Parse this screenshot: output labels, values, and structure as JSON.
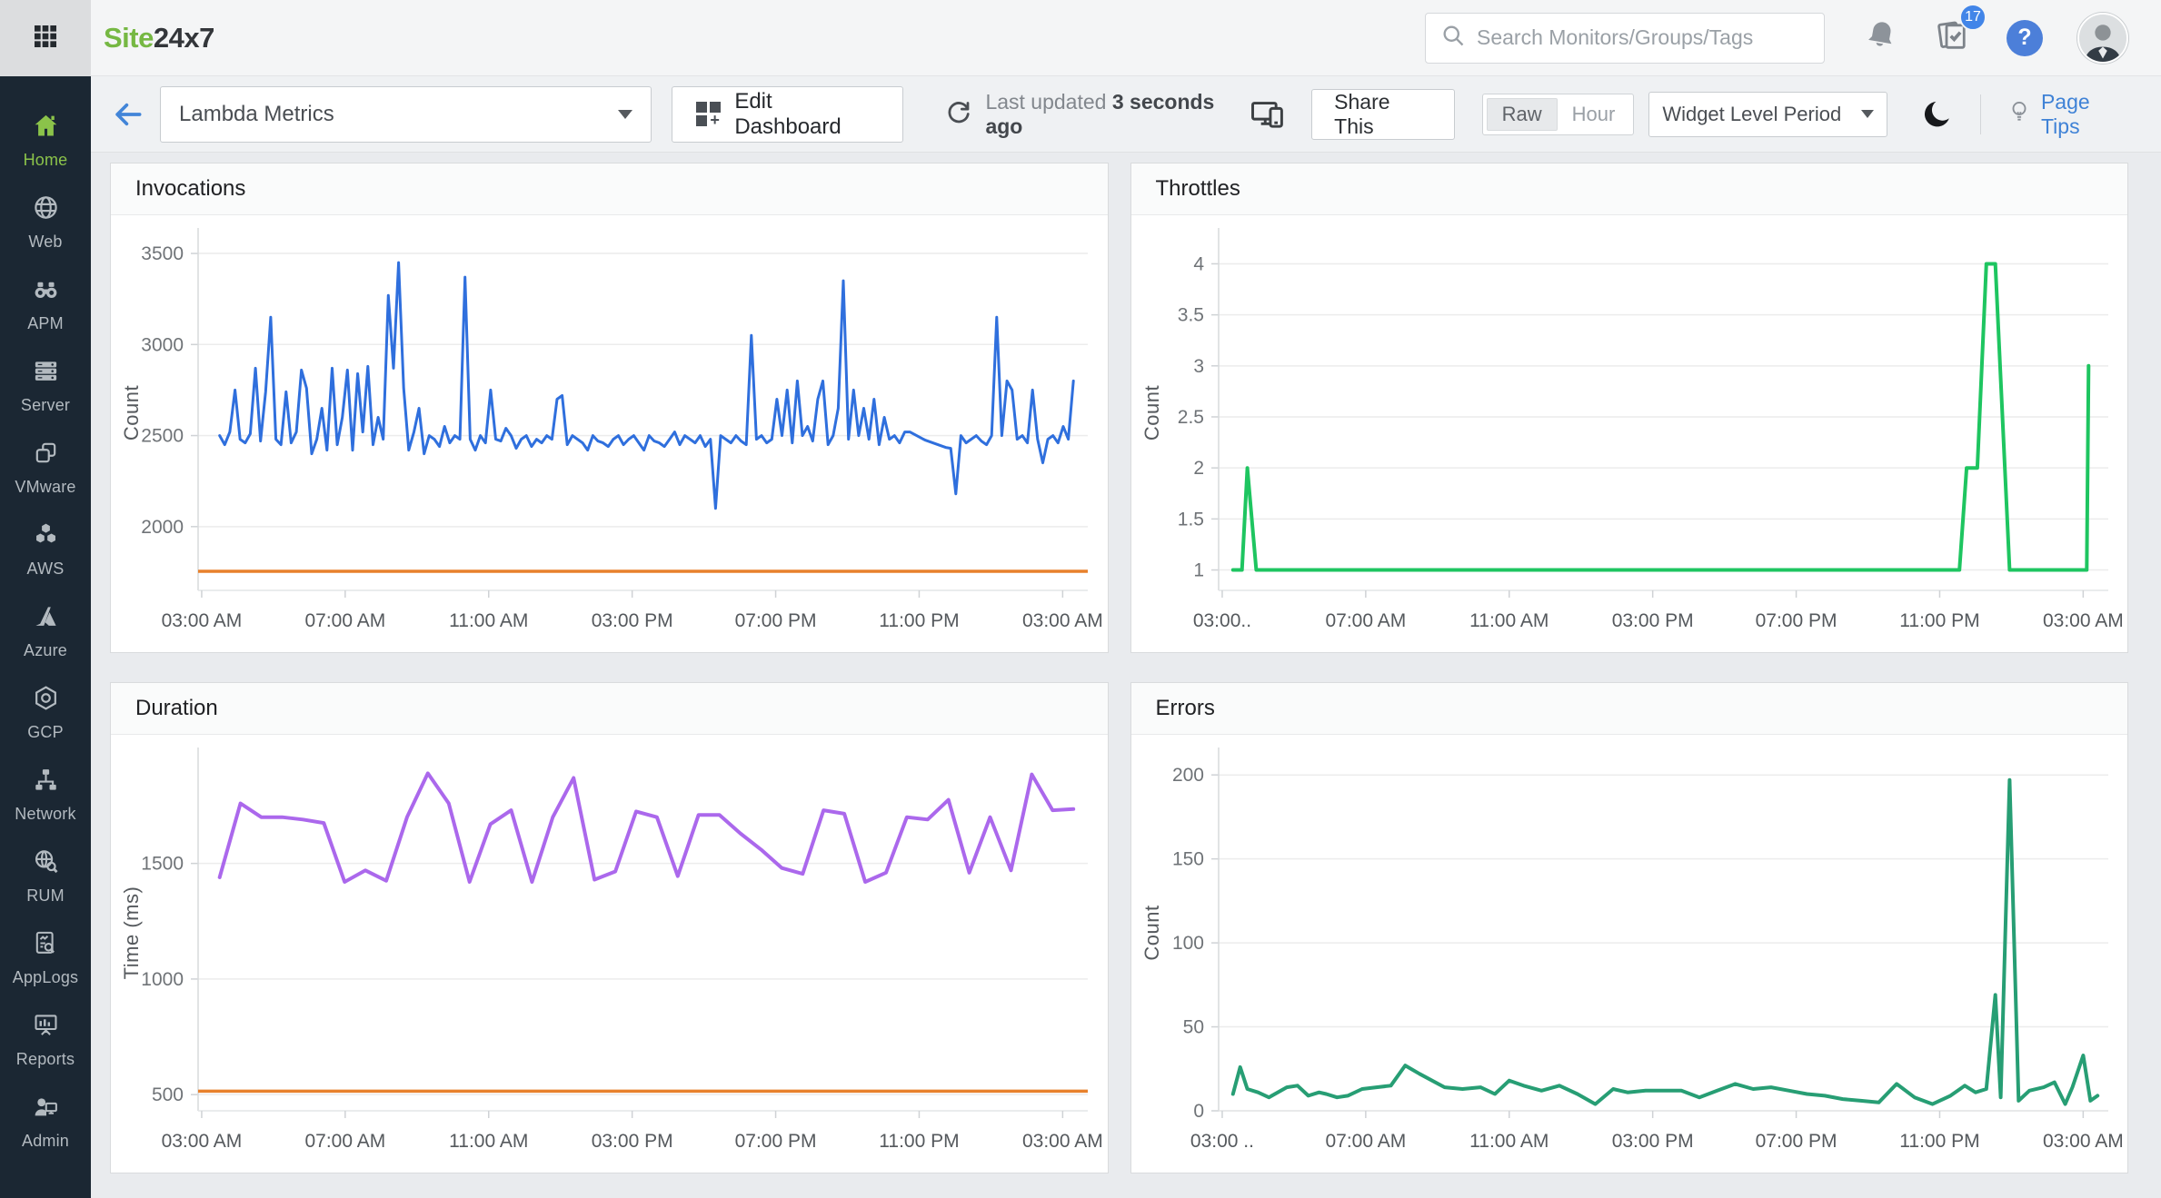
{
  "header": {
    "logo_green": "Site",
    "logo_dark": "24x7",
    "search_placeholder": "Search Monitors/Groups/Tags",
    "task_badge": "17",
    "help_label": "?"
  },
  "toolbar": {
    "dashboard_name": "Lambda Metrics",
    "edit_dashboard": "Edit Dashboard",
    "last_updated_prefix": "Last updated",
    "last_updated_value": "3 seconds ago",
    "share_this": "Share This",
    "period_raw": "Raw",
    "period_hour": "Hour",
    "widget_level_period": "Widget Level Period",
    "page_tips": "Page Tips"
  },
  "sidebar": {
    "items": [
      {
        "label": "Home",
        "active": true
      },
      {
        "label": "Web",
        "active": false
      },
      {
        "label": "APM",
        "active": false
      },
      {
        "label": "Server",
        "active": false
      },
      {
        "label": "VMware",
        "active": false
      },
      {
        "label": "AWS",
        "active": false
      },
      {
        "label": "Azure",
        "active": false
      },
      {
        "label": "GCP",
        "active": false
      },
      {
        "label": "Network",
        "active": false
      },
      {
        "label": "RUM",
        "active": false
      },
      {
        "label": "AppLogs",
        "active": false
      },
      {
        "label": "Reports",
        "active": false
      },
      {
        "label": "Admin",
        "active": false
      }
    ]
  },
  "colors": {
    "brand_green": "#76b843",
    "link_blue": "#3f82d6",
    "sidebar_active": "#8bc34a",
    "threshold_orange": "#e8812c"
  },
  "chart_data": [
    {
      "id": "invocations",
      "title": "Invocations",
      "type": "line",
      "ylabel": "Count",
      "ylim": [
        1650,
        3600
      ],
      "yticks": [
        2000,
        2500,
        3000,
        3500
      ],
      "xlim": [
        2.9,
        27.7
      ],
      "xticks": [
        {
          "v": 3,
          "label": "03:00 AM"
        },
        {
          "v": 7,
          "label": "07:00 AM"
        },
        {
          "v": 11,
          "label": "11:00 AM"
        },
        {
          "v": 15,
          "label": "03:00 PM"
        },
        {
          "v": 19,
          "label": "07:00 PM"
        },
        {
          "v": 23,
          "label": "11:00 PM"
        },
        {
          "v": 27,
          "label": "03:00 AM"
        }
      ],
      "threshold": {
        "value": 1755,
        "color": "#e8812c"
      },
      "series": [
        {
          "name": "Invocations",
          "color": "#2f6fdd",
          "width": 3,
          "x_start": 3.5,
          "x_end": 27.3,
          "values": [
            2500,
            2450,
            2520,
            2750,
            2480,
            2460,
            2510,
            2870,
            2470,
            2740,
            3150,
            2480,
            2450,
            2740,
            2460,
            2520,
            2860,
            2760,
            2400,
            2480,
            2650,
            2420,
            2870,
            2450,
            2600,
            2860,
            2420,
            2840,
            2520,
            2880,
            2450,
            2600,
            2480,
            3270,
            2870,
            3450,
            2760,
            2420,
            2520,
            2650,
            2400,
            2500,
            2480,
            2440,
            2550,
            2460,
            2500,
            2480,
            3370,
            2480,
            2420,
            2500,
            2460,
            2750,
            2480,
            2470,
            2540,
            2500,
            2430,
            2480,
            2500,
            2440,
            2480,
            2460,
            2500,
            2480,
            2700,
            2720,
            2450,
            2500,
            2480,
            2460,
            2420,
            2500,
            2470,
            2460,
            2440,
            2480,
            2500,
            2450,
            2480,
            2500,
            2460,
            2420,
            2500,
            2470,
            2460,
            2440,
            2480,
            2520,
            2450,
            2500,
            2480,
            2460,
            2500,
            2440,
            2480,
            2100,
            2500,
            2480,
            2460,
            2500,
            2470,
            2450,
            3050,
            2480,
            2500,
            2460,
            2480,
            2700,
            2500,
            2750,
            2460,
            2800,
            2500,
            2550,
            2470,
            2700,
            2800,
            2450,
            2500,
            2650,
            3350,
            2480,
            2750,
            2500,
            2650,
            2480,
            2700,
            2450,
            2600,
            2480,
            2500,
            2460,
            2520,
            2520,
            2505,
            2490,
            2475,
            2465,
            2455,
            2445,
            2435,
            2430,
            2180,
            2500,
            2460,
            2480,
            2500,
            2470,
            2450,
            2500,
            3150,
            2500,
            2800,
            2750,
            2480,
            2500,
            2460,
            2750,
            2480,
            2350,
            2480,
            2500,
            2460,
            2550,
            2480,
            2800
          ]
        }
      ]
    },
    {
      "id": "throttles",
      "title": "Throttles",
      "type": "line",
      "ylabel": "Count",
      "ylim": [
        0.8,
        4.28
      ],
      "yticks": [
        1,
        1.5,
        2,
        2.5,
        3,
        3.5,
        4
      ],
      "xlim": [
        2.9,
        27.7
      ],
      "xticks": [
        {
          "v": 3,
          "label": "03:00.."
        },
        {
          "v": 7,
          "label": "07:00 AM"
        },
        {
          "v": 11,
          "label": "11:00 AM"
        },
        {
          "v": 15,
          "label": "03:00 PM"
        },
        {
          "v": 19,
          "label": "07:00 PM"
        },
        {
          "v": 23,
          "label": "11:00 PM"
        },
        {
          "v": 27,
          "label": "03:00 AM"
        }
      ],
      "series": [
        {
          "name": "Throttles",
          "color": "#1ec560",
          "width": 4,
          "points": [
            [
              3.3,
              1
            ],
            [
              3.55,
              1
            ],
            [
              3.7,
              2
            ],
            [
              3.95,
              1
            ],
            [
              4.3,
              1
            ],
            [
              6,
              1
            ],
            [
              8,
              1
            ],
            [
              10,
              1
            ],
            [
              12,
              1
            ],
            [
              14,
              1
            ],
            [
              16,
              1
            ],
            [
              18,
              1
            ],
            [
              20,
              1
            ],
            [
              22,
              1
            ],
            [
              23.3,
              1
            ],
            [
              23.55,
              1
            ],
            [
              23.75,
              2
            ],
            [
              24.05,
              2
            ],
            [
              24.3,
              4
            ],
            [
              24.55,
              4
            ],
            [
              24.95,
              1
            ],
            [
              25.5,
              1
            ],
            [
              26.5,
              1
            ],
            [
              27.1,
              1
            ],
            [
              27.15,
              3
            ]
          ]
        }
      ]
    },
    {
      "id": "duration",
      "title": "Duration",
      "type": "line",
      "ylabel": "Time (ms)",
      "ylim": [
        430,
        1970
      ],
      "yticks": [
        500,
        1000,
        1500
      ],
      "xlim": [
        2.9,
        27.7
      ],
      "xticks": [
        {
          "v": 3,
          "label": "03:00 AM"
        },
        {
          "v": 7,
          "label": "07:00 AM"
        },
        {
          "v": 11,
          "label": "11:00 AM"
        },
        {
          "v": 15,
          "label": "03:00 PM"
        },
        {
          "v": 19,
          "label": "07:00 PM"
        },
        {
          "v": 23,
          "label": "11:00 PM"
        },
        {
          "v": 27,
          "label": "03:00 AM"
        }
      ],
      "threshold": {
        "value": 515,
        "color": "#e8812c"
      },
      "series": [
        {
          "name": "Duration",
          "color": "#ab68ec",
          "width": 4,
          "x_start": 3.5,
          "x_end": 27.3,
          "values": [
            1440,
            1760,
            1700,
            1700,
            1690,
            1675,
            1420,
            1470,
            1425,
            1700,
            1890,
            1760,
            1420,
            1670,
            1730,
            1420,
            1700,
            1870,
            1430,
            1465,
            1725,
            1700,
            1445,
            1710,
            1710,
            1630,
            1560,
            1480,
            1455,
            1730,
            1715,
            1420,
            1460,
            1700,
            1690,
            1775,
            1460,
            1700,
            1470,
            1885,
            1730,
            1735
          ]
        }
      ]
    },
    {
      "id": "errors",
      "title": "Errors",
      "type": "line",
      "ylabel": "Count",
      "ylim": [
        0,
        212
      ],
      "yticks": [
        0,
        50,
        100,
        150,
        200
      ],
      "xlim": [
        2.9,
        27.7
      ],
      "xticks": [
        {
          "v": 3,
          "label": "03:00 .."
        },
        {
          "v": 7,
          "label": "07:00 AM"
        },
        {
          "v": 11,
          "label": "11:00 AM"
        },
        {
          "v": 15,
          "label": "03:00 PM"
        },
        {
          "v": 19,
          "label": "07:00 PM"
        },
        {
          "v": 23,
          "label": "11:00 PM"
        },
        {
          "v": 27,
          "label": "03:00 AM"
        }
      ],
      "series": [
        {
          "name": "Errors",
          "color": "#279e74",
          "width": 4,
          "points": [
            [
              3.3,
              10
            ],
            [
              3.5,
              26
            ],
            [
              3.7,
              13
            ],
            [
              4.0,
              11
            ],
            [
              4.3,
              8
            ],
            [
              4.8,
              14
            ],
            [
              5.1,
              15
            ],
            [
              5.4,
              9
            ],
            [
              5.7,
              11
            ],
            [
              5.9,
              10
            ],
            [
              6.2,
              8
            ],
            [
              6.5,
              9
            ],
            [
              6.9,
              13
            ],
            [
              7.3,
              14
            ],
            [
              7.7,
              15
            ],
            [
              8.1,
              27
            ],
            [
              8.5,
              22
            ],
            [
              9.2,
              14
            ],
            [
              9.7,
              13
            ],
            [
              10.2,
              14
            ],
            [
              10.6,
              10
            ],
            [
              11.0,
              18
            ],
            [
              11.4,
              15
            ],
            [
              11.9,
              12
            ],
            [
              12.4,
              15
            ],
            [
              12.9,
              10
            ],
            [
              13.4,
              4
            ],
            [
              13.9,
              13
            ],
            [
              14.3,
              11
            ],
            [
              14.8,
              12
            ],
            [
              15.3,
              12
            ],
            [
              15.8,
              12
            ],
            [
              16.3,
              8
            ],
            [
              16.8,
              12
            ],
            [
              17.3,
              16
            ],
            [
              17.8,
              13
            ],
            [
              18.3,
              14
            ],
            [
              18.8,
              12
            ],
            [
              19.3,
              10
            ],
            [
              19.8,
              9
            ],
            [
              20.3,
              7
            ],
            [
              20.8,
              6
            ],
            [
              21.3,
              5
            ],
            [
              21.8,
              16
            ],
            [
              22.3,
              8
            ],
            [
              22.8,
              4
            ],
            [
              23.3,
              9
            ],
            [
              23.7,
              15
            ],
            [
              24.0,
              11
            ],
            [
              24.3,
              13
            ],
            [
              24.55,
              69
            ],
            [
              24.7,
              8
            ],
            [
              24.95,
              197
            ],
            [
              25.2,
              6
            ],
            [
              25.5,
              12
            ],
            [
              25.9,
              14
            ],
            [
              26.2,
              17
            ],
            [
              26.5,
              4
            ],
            [
              26.7,
              14
            ],
            [
              27.0,
              33
            ],
            [
              27.2,
              6
            ],
            [
              27.4,
              9
            ]
          ]
        }
      ]
    }
  ]
}
